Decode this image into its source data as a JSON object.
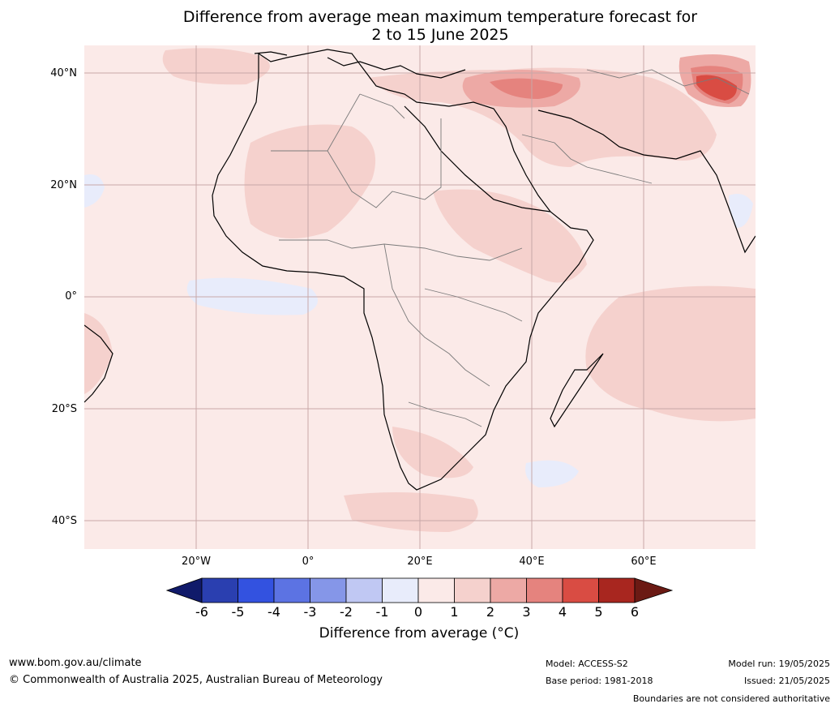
{
  "title": {
    "line1": "Difference from average mean maximum temperature forecast for",
    "line2": "2 to 15 June 2025"
  },
  "map": {
    "latitude_labels": [
      "40°N",
      "20°N",
      "0°",
      "20°S",
      "40°S"
    ],
    "longitude_labels": [
      "20°W",
      "0°",
      "20°E",
      "40°E",
      "60°E"
    ],
    "colors": {
      "ocean_default": "#fbeae8",
      "warm_1_2": "#f5d1cd",
      "warm_2_3": "#eda9a5",
      "warm_3_4": "#e5837e",
      "warm_4_5": "#d94c43",
      "warm_5_6": "#a8261f",
      "cool_0_-1": "#e8ecfb",
      "coast": "#000000",
      "border": "#7a7a7a",
      "grid": "#c8a8a8"
    }
  },
  "colorbar": {
    "tick_labels": [
      "-6",
      "-5",
      "-4",
      "-3",
      "-2",
      "-1",
      "0",
      "1",
      "2",
      "3",
      "4",
      "5",
      "6"
    ],
    "colors": [
      "#101a6a",
      "#2a3fb0",
      "#3352e0",
      "#5c73e3",
      "#8596e8",
      "#c0c8f3",
      "#e8ecfb",
      "#fbeae8",
      "#f5d1cd",
      "#eda9a5",
      "#e5837e",
      "#d94c43",
      "#a8261f",
      "#6b1a14"
    ],
    "title": "Difference from average ($^\\circ$C)",
    "title_display": "Difference from average (°C)"
  },
  "footer": {
    "website": "www.bom.gov.au/climate",
    "copyright": "© Commonwealth of Australia 2025, Australian Bureau of Meteorology",
    "model": "Model: ACCESS-S2",
    "base_period": "Base period: 1981-2018",
    "model_run": "Model run: 19/05/2025",
    "issued": "Issued: 21/05/2025",
    "disclaimer": "Boundaries are not considered authoritative"
  }
}
